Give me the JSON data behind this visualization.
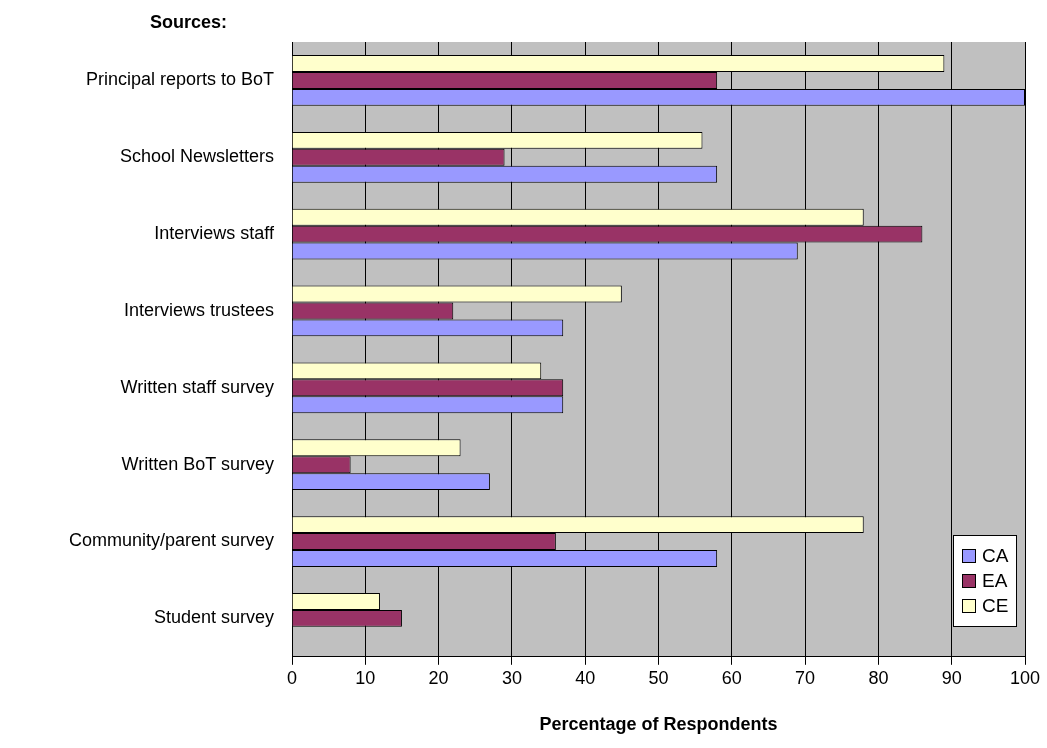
{
  "chart_data": {
    "type": "bar",
    "orientation": "horizontal",
    "ylabel": "Sources:",
    "xlabel": "Percentage of Respondents",
    "categories": [
      "Principal reports to BoT",
      "School Newsletters",
      "Interviews staff",
      "Interviews trustees",
      "Written staff survey",
      "Written BoT survey",
      "Community/parent survey",
      "Student survey"
    ],
    "series": [
      {
        "name": "CA",
        "color": "#9999ff",
        "values": [
          100,
          58,
          69,
          37,
          37,
          27,
          58,
          0
        ]
      },
      {
        "name": "EA",
        "color": "#993366",
        "values": [
          58,
          29,
          86,
          22,
          37,
          8,
          36,
          15
        ]
      },
      {
        "name": "CE",
        "color": "#ffffcc",
        "values": [
          89,
          56,
          78,
          45,
          34,
          23,
          78,
          12
        ]
      }
    ],
    "xlim": [
      0,
      100
    ],
    "xticks": [
      0,
      10,
      20,
      30,
      40,
      50,
      60,
      70,
      80,
      90,
      100
    ],
    "grid": "x",
    "legend": "bottom right"
  }
}
